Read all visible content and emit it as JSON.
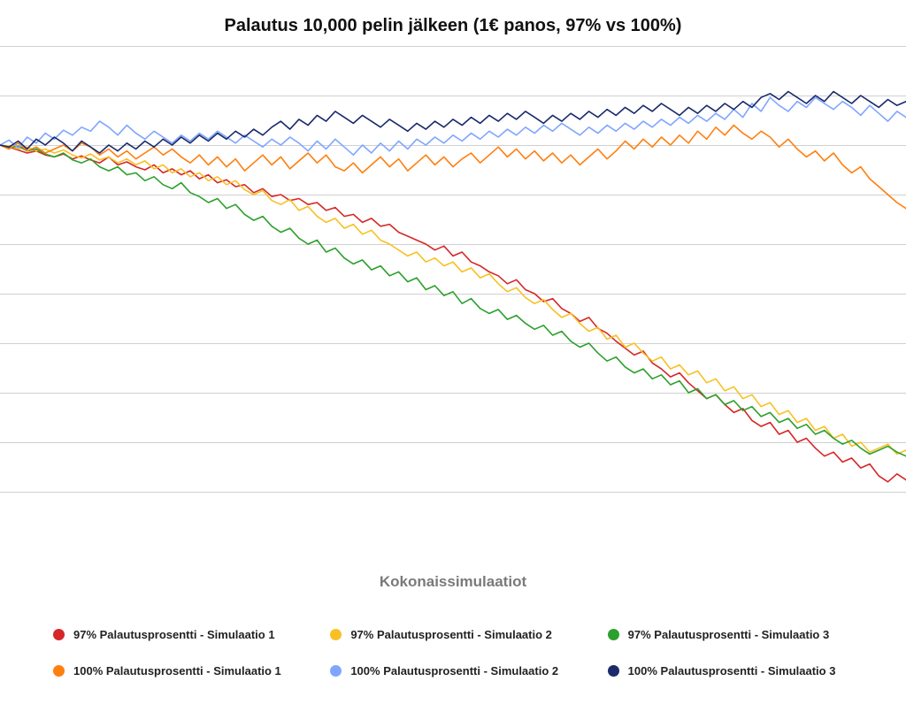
{
  "title": "Palautus 10,000 pelin jälkeen (1€ panos, 97% vs 100%)",
  "xlabel": "Kokonaissimulaatiot",
  "chart": {
    "type": "line",
    "background_color": "#ffffff",
    "grid_color": "#d0d0d0",
    "title_fontsize": 20,
    "xlabel_fontsize": 17,
    "xlabel_color": "#7a7a7a",
    "line_width": 1.6,
    "xlim": [
      0,
      100
    ],
    "ylim": [
      -400,
      100
    ],
    "grid_ylines": [
      100,
      50,
      0,
      -50,
      -100,
      -150,
      -200,
      -250,
      -300,
      -350
    ],
    "series": [
      {
        "key": "s97_1",
        "label": "97% Palautusprosentti - Simulaatio 1",
        "color": "#d62728",
        "y": [
          0,
          -2,
          -5,
          -8,
          -6,
          -10,
          -12,
          -9,
          -14,
          -11,
          -15,
          -18,
          -12,
          -20,
          -17,
          -22,
          -25,
          -20,
          -28,
          -24,
          -30,
          -26,
          -34,
          -30,
          -38,
          -35,
          -42,
          -40,
          -48,
          -44,
          -52,
          -50,
          -56,
          -54,
          -60,
          -58,
          -66,
          -63,
          -72,
          -70,
          -78,
          -74,
          -82,
          -80,
          -88,
          -92,
          -96,
          -100,
          -106,
          -102,
          -112,
          -108,
          -118,
          -122,
          -128,
          -132,
          -140,
          -136,
          -146,
          -150,
          -158,
          -155,
          -165,
          -170,
          -178,
          -174,
          -185,
          -190,
          -198,
          -205,
          -212,
          -208,
          -220,
          -226,
          -234,
          -230,
          -240,
          -248,
          -256,
          -252,
          -262,
          -270,
          -266,
          -278,
          -284,
          -280,
          -292,
          -288,
          -300,
          -296,
          -306,
          -314,
          -310,
          -320,
          -316,
          -326,
          -322,
          -334,
          -340,
          -332,
          -338
        ]
      },
      {
        "key": "s97_2",
        "label": "97% Palautusprosentti - Simulaatio 2",
        "color": "#f8c024",
        "y": [
          0,
          -1,
          -4,
          -2,
          -6,
          -4,
          -8,
          -5,
          -10,
          -13,
          -9,
          -15,
          -12,
          -18,
          -14,
          -20,
          -16,
          -24,
          -20,
          -28,
          -24,
          -32,
          -28,
          -36,
          -32,
          -40,
          -36,
          -45,
          -50,
          -46,
          -56,
          -60,
          -55,
          -66,
          -62,
          -72,
          -78,
          -74,
          -84,
          -80,
          -90,
          -86,
          -96,
          -100,
          -106,
          -112,
          -108,
          -118,
          -114,
          -122,
          -118,
          -128,
          -124,
          -134,
          -130,
          -140,
          -148,
          -144,
          -154,
          -160,
          -156,
          -166,
          -174,
          -170,
          -180,
          -188,
          -184,
          -196,
          -192,
          -204,
          -200,
          -210,
          -218,
          -214,
          -226,
          -222,
          -232,
          -228,
          -240,
          -236,
          -248,
          -244,
          -256,
          -252,
          -264,
          -260,
          -272,
          -268,
          -280,
          -276,
          -288,
          -284,
          -296,
          -292,
          -304,
          -300,
          -310,
          -306,
          -302,
          -312,
          -308
        ]
      },
      {
        "key": "s97_3",
        "label": "97% Palautusprosentti - Simulaatio 3",
        "color": "#2ca02c",
        "y": [
          0,
          -3,
          -1,
          -6,
          -4,
          -9,
          -12,
          -8,
          -15,
          -18,
          -14,
          -22,
          -26,
          -22,
          -30,
          -28,
          -36,
          -32,
          -40,
          -44,
          -38,
          -48,
          -52,
          -58,
          -54,
          -64,
          -60,
          -70,
          -76,
          -72,
          -82,
          -88,
          -84,
          -94,
          -100,
          -96,
          -108,
          -104,
          -114,
          -120,
          -116,
          -126,
          -122,
          -132,
          -128,
          -138,
          -134,
          -146,
          -142,
          -152,
          -148,
          -160,
          -155,
          -165,
          -170,
          -166,
          -176,
          -172,
          -180,
          -186,
          -182,
          -192,
          -188,
          -198,
          -204,
          -200,
          -210,
          -218,
          -214,
          -224,
          -230,
          -226,
          -236,
          -232,
          -242,
          -238,
          -250,
          -246,
          -256,
          -252,
          -262,
          -258,
          -268,
          -264,
          -274,
          -270,
          -280,
          -276,
          -286,
          -282,
          -292,
          -288,
          -296,
          -302,
          -298,
          -306,
          -312,
          -308,
          -304,
          -310,
          -314
        ]
      },
      {
        "key": "s100_1",
        "label": "100% Palautusprosentti - Simulaatio 1",
        "color": "#ff7f0e",
        "y": [
          0,
          -4,
          2,
          -6,
          -2,
          -8,
          -4,
          0,
          -6,
          2,
          -2,
          -10,
          -4,
          -12,
          -6,
          -14,
          -8,
          -2,
          -10,
          -4,
          -12,
          -18,
          -10,
          -20,
          -12,
          -22,
          -14,
          -26,
          -18,
          -10,
          -20,
          -12,
          -24,
          -16,
          -8,
          -18,
          -10,
          -22,
          -26,
          -18,
          -28,
          -20,
          -12,
          -22,
          -14,
          -26,
          -18,
          -10,
          -20,
          -12,
          -22,
          -14,
          -8,
          -18,
          -10,
          -2,
          -12,
          -4,
          -14,
          -6,
          -16,
          -8,
          -18,
          -10,
          -20,
          -12,
          -4,
          -14,
          -6,
          4,
          -4,
          6,
          -2,
          8,
          0,
          10,
          2,
          14,
          6,
          18,
          10,
          20,
          12,
          6,
          14,
          8,
          -2,
          6,
          -4,
          -12,
          -6,
          -16,
          -8,
          -20,
          -28,
          -22,
          -34,
          -42,
          -50,
          -58,
          -64
        ]
      },
      {
        "key": "s100_2",
        "label": "100% Palautusprosentti - Simulaatio 2",
        "color": "#7fa6ff",
        "y": [
          0,
          5,
          -3,
          8,
          2,
          12,
          6,
          15,
          10,
          18,
          14,
          24,
          18,
          10,
          20,
          12,
          6,
          14,
          8,
          2,
          10,
          4,
          12,
          6,
          14,
          8,
          2,
          10,
          4,
          -2,
          6,
          0,
          8,
          2,
          -6,
          4,
          -4,
          6,
          -2,
          -10,
          0,
          -8,
          2,
          -6,
          4,
          -4,
          6,
          0,
          8,
          2,
          10,
          4,
          12,
          6,
          14,
          8,
          16,
          10,
          18,
          12,
          20,
          14,
          22,
          16,
          10,
          18,
          12,
          20,
          14,
          22,
          16,
          24,
          18,
          26,
          20,
          28,
          22,
          30,
          24,
          32,
          26,
          36,
          28,
          42,
          34,
          48,
          40,
          34,
          44,
          38,
          48,
          42,
          36,
          44,
          38,
          30,
          40,
          32,
          24,
          34,
          28
        ]
      },
      {
        "key": "s100_3",
        "label": "100% Palautusprosentti - Simulaatio 3",
        "color": "#1a2a6c",
        "y": [
          0,
          -2,
          4,
          -4,
          6,
          0,
          8,
          2,
          -6,
          4,
          -2,
          -8,
          0,
          -6,
          2,
          -4,
          4,
          -2,
          6,
          0,
          8,
          2,
          10,
          4,
          12,
          6,
          14,
          8,
          16,
          10,
          18,
          24,
          16,
          26,
          20,
          30,
          24,
          34,
          28,
          22,
          30,
          24,
          18,
          26,
          20,
          14,
          22,
          16,
          24,
          18,
          26,
          20,
          28,
          22,
          30,
          24,
          32,
          26,
          34,
          28,
          22,
          30,
          24,
          32,
          26,
          34,
          28,
          36,
          30,
          38,
          32,
          40,
          34,
          42,
          36,
          30,
          38,
          32,
          40,
          34,
          42,
          36,
          44,
          38,
          48,
          52,
          46,
          54,
          48,
          42,
          50,
          44,
          54,
          48,
          42,
          50,
          44,
          38,
          46,
          40,
          44
        ]
      }
    ],
    "legend": {
      "columns": 3,
      "swatch_radius": 6.5,
      "label_fontsize": 13,
      "label_fontweight": 600
    }
  }
}
